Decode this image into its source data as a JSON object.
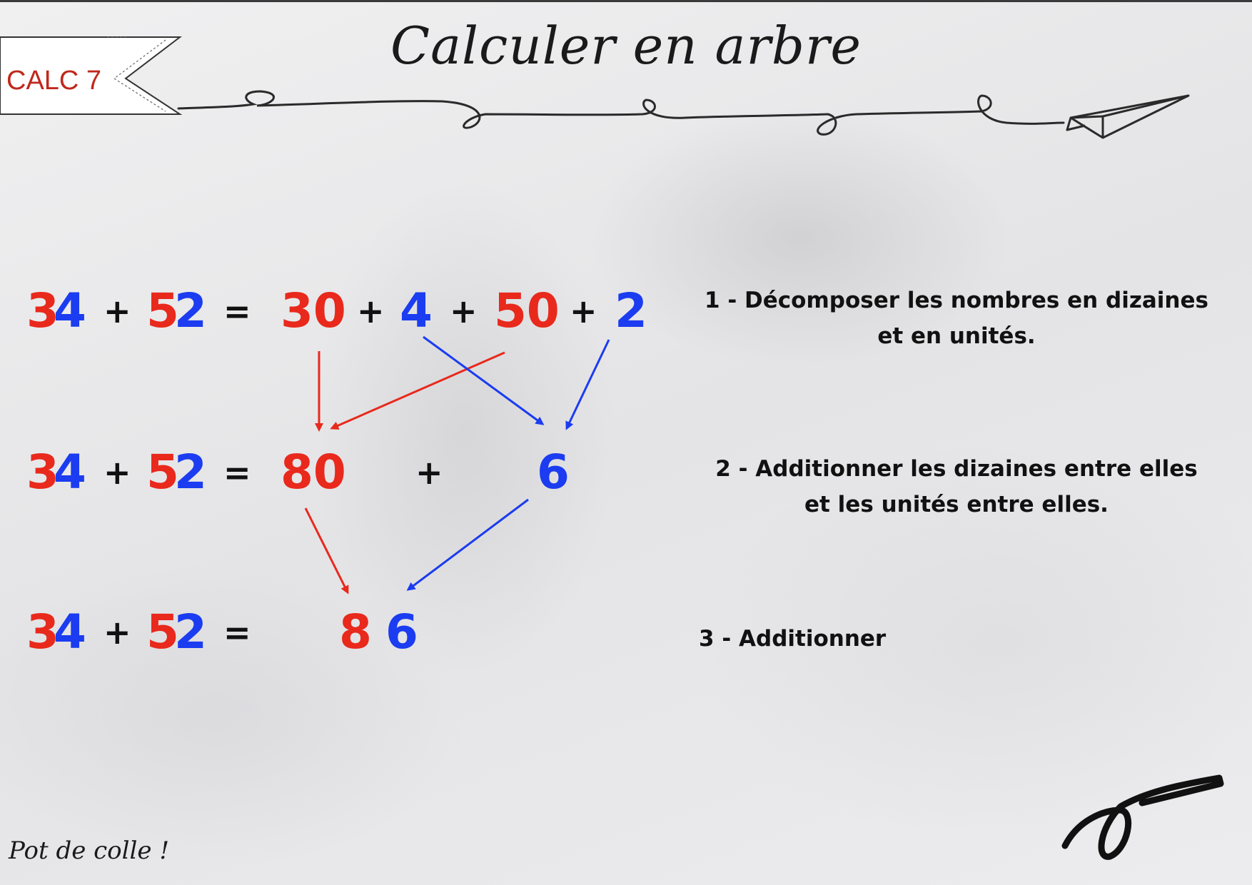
{
  "header": {
    "tag": "CALC 7",
    "title": "Calculer en arbre"
  },
  "rows": [
    {
      "left": {
        "a_tens": "3",
        "a_units": "4",
        "plus": "+",
        "b_tens": "5",
        "b_units": "2",
        "equals": "="
      },
      "right": {
        "t1": "30",
        "p1": "+",
        "u1": "4",
        "p2": "+",
        "t2": "50",
        "p3": "+",
        "u2": "2"
      }
    },
    {
      "left": {
        "a_tens": "3",
        "a_units": "4",
        "plus": "+",
        "b_tens": "5",
        "b_units": "2",
        "equals": "="
      },
      "right": {
        "tens_sum": "80",
        "plus": "+",
        "units_sum": "6"
      }
    },
    {
      "left": {
        "a_tens": "3",
        "a_units": "4",
        "plus": "+",
        "b_tens": "5",
        "b_units": "2",
        "equals": "="
      },
      "right": {
        "result_tens": "8",
        "result_units": "6"
      }
    }
  ],
  "steps": [
    {
      "line1": "1 - Décomposer les nombres en dizaines",
      "line2": "et en unités."
    },
    {
      "line1": "2 - Additionner les dizaines entre elles",
      "line2": "et les unités entre elles."
    },
    {
      "line1": "3 - Additionner"
    }
  ],
  "footer": {
    "brand": "Pot de colle !"
  },
  "colors": {
    "tens": "#e8291c",
    "units": "#1b3cf0",
    "text": "#111111"
  }
}
